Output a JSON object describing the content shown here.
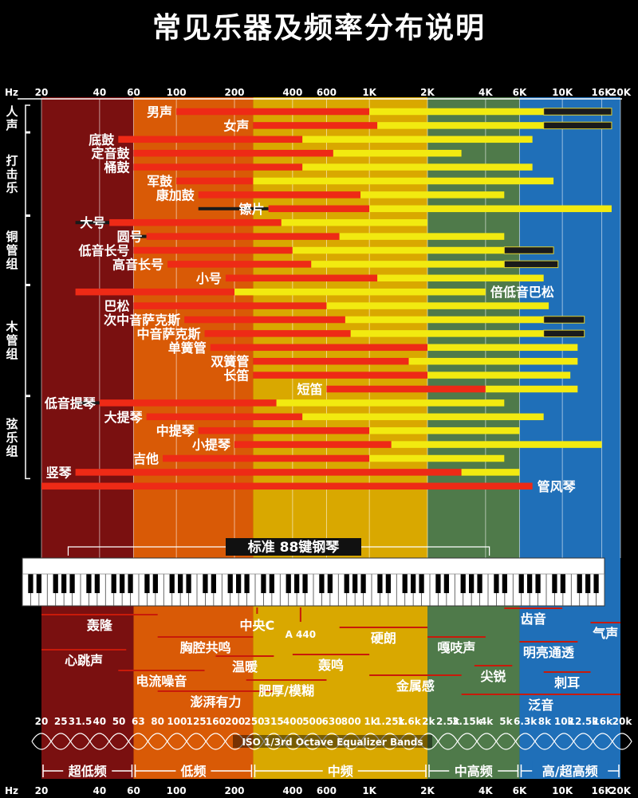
{
  "title": "常见乐器及频率分布说明",
  "chart_data": {
    "type": "bar",
    "xscale": "log",
    "xrange": [
      20,
      20000
    ],
    "axis_unit": "Hz",
    "ticks_top": [
      {
        "v": 20,
        "label": "20"
      },
      {
        "v": 40,
        "label": "40"
      },
      {
        "v": 60,
        "label": "60"
      },
      {
        "v": 100,
        "label": "100"
      },
      {
        "v": 200,
        "label": "200"
      },
      {
        "v": 400,
        "label": "400"
      },
      {
        "v": 600,
        "label": "600"
      },
      {
        "v": 1000,
        "label": "1K"
      },
      {
        "v": 2000,
        "label": "2K"
      },
      {
        "v": 4000,
        "label": "4K"
      },
      {
        "v": 6000,
        "label": "6K"
      },
      {
        "v": 10000,
        "label": "10K"
      },
      {
        "v": 16000,
        "label": "16K"
      },
      {
        "v": 20000,
        "label": "20K"
      }
    ],
    "regions": [
      {
        "from": 20,
        "to": 60,
        "color": "#7a1010"
      },
      {
        "from": 60,
        "to": 250,
        "color": "#d95a06"
      },
      {
        "from": 250,
        "to": 2000,
        "color": "#d9a800"
      },
      {
        "from": 2000,
        "to": 6000,
        "color": "#4f7a4a"
      },
      {
        "from": 6000,
        "to": 20000,
        "color": "#1f6fb8"
      }
    ],
    "groups": [
      {
        "label": "人声",
        "from": 0,
        "to": 1
      },
      {
        "label": "打击乐",
        "from": 2,
        "to": 7
      },
      {
        "label": "铜管组",
        "from": 8,
        "to": 12
      },
      {
        "label": "木管组",
        "from": 13,
        "to": 20
      },
      {
        "label": "弦乐组",
        "from": 21,
        "to": 26
      }
    ],
    "instruments": [
      {
        "name": "男声",
        "fund": [
          100,
          1000
        ],
        "harm": [
          1000,
          8000
        ],
        "extra": [
          8000,
          18000
        ],
        "label_side": "left"
      },
      {
        "name": "女声",
        "fund": [
          250,
          1100
        ],
        "harm": [
          1100,
          8000
        ],
        "extra": [
          8000,
          18000
        ],
        "label_side": "left"
      },
      {
        "name": "底鼓",
        "fund": [
          50,
          450
        ],
        "harm": [
          450,
          7000
        ],
        "label_side": "left"
      },
      {
        "name": "定音鼓",
        "fund": [
          60,
          650
        ],
        "harm": [
          650,
          3000
        ],
        "label_side": "left"
      },
      {
        "name": "桶鼓",
        "fund": [
          60,
          450
        ],
        "harm": [
          450,
          7000
        ],
        "label_side": "left"
      },
      {
        "name": "军鼓",
        "fund": [
          100,
          250
        ],
        "harm": [
          250,
          9000
        ],
        "label_side": "left"
      },
      {
        "name": "康加鼓",
        "fund": [
          130,
          900
        ],
        "harm": [
          900,
          5000
        ],
        "label_side": "left"
      },
      {
        "name": "镲片",
        "pre": [
          130,
          300
        ],
        "fund": [
          300,
          1000
        ],
        "harm": [
          1000,
          18000
        ],
        "label_side": "left"
      },
      {
        "name": "大号",
        "pre": [
          30,
          45
        ],
        "fund": [
          45,
          350
        ],
        "harm": [
          350,
          2000
        ],
        "label_side": "left"
      },
      {
        "name": "圆号",
        "pre": [
          60,
          70
        ],
        "fund": [
          70,
          700
        ],
        "harm": [
          700,
          5000
        ],
        "label_side": "left"
      },
      {
        "name": "低音长号",
        "fund": [
          60,
          400
        ],
        "harm": [
          400,
          5000
        ],
        "extra": [
          5000,
          9000
        ],
        "label_side": "left"
      },
      {
        "name": "高音长号",
        "fund": [
          90,
          500
        ],
        "harm": [
          500,
          5000
        ],
        "extra": [
          5000,
          9500
        ],
        "label_side": "left"
      },
      {
        "name": "小号",
        "fund": [
          180,
          1100
        ],
        "harm": [
          1100,
          8000
        ],
        "label_side": "left"
      },
      {
        "name": "倍低音巴松",
        "fund": [
          30,
          200
        ],
        "harm": [
          200,
          4000
        ],
        "label_side": "right"
      },
      {
        "name": "巴松",
        "fund": [
          60,
          600
        ],
        "harm": [
          600,
          8500
        ],
        "label_side": "left"
      },
      {
        "name": "次中音萨克斯",
        "fund": [
          110,
          750
        ],
        "harm": [
          750,
          8000
        ],
        "extra": [
          8000,
          13000
        ],
        "label_side": "left"
      },
      {
        "name": "中音萨克斯",
        "fund": [
          140,
          800
        ],
        "harm": [
          800,
          8000
        ],
        "extra": [
          8000,
          13000
        ],
        "label_side": "left"
      },
      {
        "name": "单簧管",
        "fund": [
          150,
          2000
        ],
        "harm": [
          2000,
          12000
        ],
        "label_side": "left"
      },
      {
        "name": "双簧管",
        "fund": [
          250,
          1600
        ],
        "harm": [
          1600,
          12000
        ],
        "label_side": "left"
      },
      {
        "name": "长笛",
        "fund": [
          250,
          2000
        ],
        "harm": [
          2000,
          11000
        ],
        "label_side": "left"
      },
      {
        "name": "短笛",
        "fund": [
          600,
          4000
        ],
        "harm": [
          4000,
          12000
        ],
        "label_side": "left"
      },
      {
        "name": "低音提琴",
        "pre": [
          30,
          40
        ],
        "fund": [
          40,
          330
        ],
        "harm": [
          330,
          5000
        ],
        "label_side": "left"
      },
      {
        "name": "大提琴",
        "fund": [
          70,
          450
        ],
        "harm": [
          450,
          8000
        ],
        "label_side": "left"
      },
      {
        "name": "中提琴",
        "fund": [
          130,
          1000
        ],
        "harm": [
          1000,
          6000
        ],
        "label_side": "left"
      },
      {
        "name": "小提琴",
        "fund": [
          200,
          1300
        ],
        "harm": [
          1300,
          16000
        ],
        "label_side": "left"
      },
      {
        "name": "吉他",
        "fund": [
          85,
          1000
        ],
        "harm": [
          1000,
          5000
        ],
        "label_side": "left"
      },
      {
        "name": "竖琴",
        "fund": [
          30,
          3000
        ],
        "harm": [
          3000,
          6000
        ],
        "label_side": "left"
      },
      {
        "name": "管风琴",
        "fund": [
          20,
          7000
        ],
        "label_side": "right"
      }
    ],
    "piano": {
      "label": "标准 88键钢琴",
      "from": 27.5,
      "to": 4186,
      "octaves": [
        "0",
        "1",
        "2",
        "3",
        "4",
        "5",
        "6",
        "7",
        "8",
        "9"
      ]
    },
    "descriptors": [
      {
        "text": "轰隆",
        "range": [
          20,
          80
        ]
      },
      {
        "text": "心跳声",
        "range": [
          20,
          55
        ]
      },
      {
        "text": "胸腔共鸣",
        "range": [
          80,
          250
        ]
      },
      {
        "text": "电流噪音",
        "range": [
          50,
          140
        ]
      },
      {
        "text": "温暖",
        "range": [
          160,
          320
        ]
      },
      {
        "text": "澎湃有力",
        "range": [
          80,
          320
        ]
      },
      {
        "text": "中央C",
        "range": [
          262,
          262
        ]
      },
      {
        "text": "A 440",
        "range": [
          440,
          440
        ]
      },
      {
        "text": "肥厚/模糊",
        "range": [
          230,
          600
        ]
      },
      {
        "text": "轰鸣",
        "range": [
          400,
          1000
        ]
      },
      {
        "text": "硬朗",
        "range": [
          700,
          2000
        ]
      },
      {
        "text": "金属感",
        "range": [
          1000,
          3000
        ]
      },
      {
        "text": "嘎吱声",
        "range": [
          2000,
          4000
        ]
      },
      {
        "text": "尖锐",
        "range": [
          3500,
          5500
        ]
      },
      {
        "text": "齿音",
        "range": [
          5000,
          10000
        ]
      },
      {
        "text": "明亮通透",
        "range": [
          6000,
          12000
        ]
      },
      {
        "text": "刺耳",
        "range": [
          8000,
          14000
        ]
      },
      {
        "text": "泛音",
        "range": [
          3000,
          20000
        ]
      },
      {
        "text": "气声",
        "range": [
          14000,
          20000
        ]
      }
    ],
    "eq_label": "ISO 1/3rd Octave Equalizer Bands",
    "eq_bands": [
      "20",
      "25",
      "31.5",
      "40",
      "50",
      "63",
      "80",
      "100",
      "125",
      "160",
      "200",
      "250",
      "315",
      "400",
      "500",
      "630",
      "800",
      "1k",
      "1.25k",
      "1.6k",
      "2k",
      "2.5k",
      "3.15k",
      "4k",
      "5k",
      "6.3k",
      "8k",
      "10k",
      "12.5k",
      "16k",
      "20k"
    ],
    "bands": [
      {
        "label": "超低频",
        "from": 20,
        "to": 60
      },
      {
        "label": "低频",
        "from": 60,
        "to": 250
      },
      {
        "label": "中频",
        "from": 250,
        "to": 2000
      },
      {
        "label": "中高频",
        "from": 2000,
        "to": 6000
      },
      {
        "label": "高/超高频",
        "from": 6000,
        "to": 20000
      }
    ],
    "ticks_bottom": [
      {
        "v": 20,
        "label": "20"
      },
      {
        "v": 40,
        "label": "40"
      },
      {
        "v": 60,
        "label": "60"
      },
      {
        "v": 100,
        "label": "100"
      },
      {
        "v": 200,
        "label": "200"
      },
      {
        "v": 400,
        "label": "400"
      },
      {
        "v": 600,
        "label": "600"
      },
      {
        "v": 1000,
        "label": "1K"
      },
      {
        "v": 2000,
        "label": "2K"
      },
      {
        "v": 4000,
        "label": "4K"
      },
      {
        "v": 6000,
        "label": "6K"
      },
      {
        "v": 10000,
        "label": "10K"
      },
      {
        "v": 16000,
        "label": "16K"
      },
      {
        "v": 20000,
        "label": "20K"
      }
    ],
    "colors": {
      "fundamental": "#ee2a16",
      "harmonics": "#f2ea10",
      "extended": "#1a1a1a"
    }
  }
}
